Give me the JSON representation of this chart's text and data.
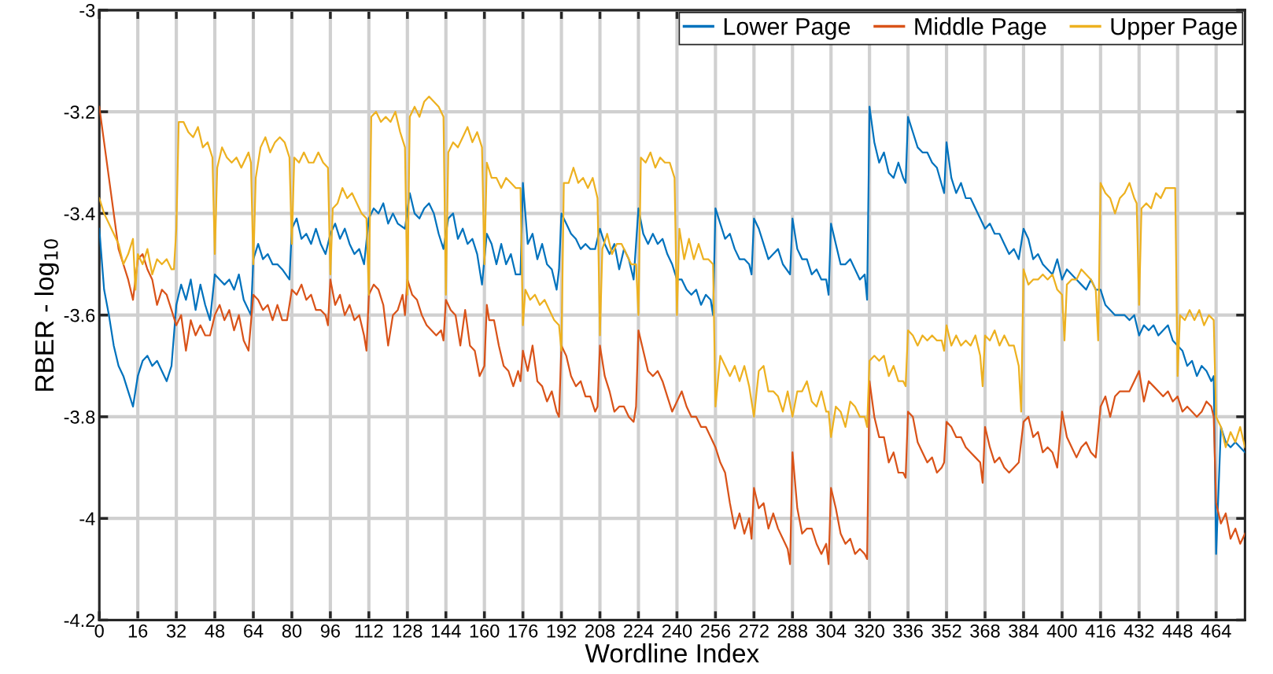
{
  "chart_data": {
    "type": "line",
    "xlabel": "Wordline Index",
    "ylabel": "RBER - log$_{10}$",
    "xlim": [
      0,
      476
    ],
    "xticks": [
      0,
      16,
      32,
      48,
      64,
      80,
      96,
      112,
      128,
      144,
      160,
      176,
      192,
      208,
      224,
      240,
      256,
      272,
      288,
      304,
      320,
      336,
      352,
      368,
      384,
      400,
      416,
      432,
      448,
      464
    ],
    "ylim": [
      -4.2,
      -3
    ],
    "yticks": [
      {
        "value": -4.2,
        "label": "-4.2"
      },
      {
        "value": -4,
        "label": "-4"
      },
      {
        "value": -3.8,
        "label": "-3.8"
      },
      {
        "value": -3.6,
        "label": "-3.6"
      },
      {
        "value": -3.4,
        "label": "-3.4"
      },
      {
        "value": -3.2,
        "label": "-3.2"
      },
      {
        "value": -3,
        "label": "-3"
      }
    ],
    "grid": true,
    "legend": "top right",
    "line_style": "solid",
    "marker": "none",
    "series": [
      {
        "name": "Lower Page",
        "color": "#0072bd",
        "x": [
          0,
          2,
          4,
          6,
          8,
          10,
          12,
          14,
          16,
          18,
          20,
          22,
          24,
          26,
          28,
          30,
          32,
          34,
          36,
          38,
          40,
          42,
          44,
          46,
          48,
          50,
          52,
          54,
          56,
          58,
          60,
          63,
          64,
          66,
          68,
          70,
          72,
          74,
          76,
          79,
          80,
          82,
          84,
          86,
          88,
          90,
          92,
          94,
          96,
          98,
          100,
          102,
          104,
          106,
          108,
          110,
          112,
          114,
          116,
          118,
          120,
          122,
          124,
          127,
          129,
          131,
          133,
          135,
          137,
          139,
          141,
          143,
          145,
          147,
          149,
          151,
          153,
          155,
          157,
          159,
          161,
          163,
          165,
          167,
          169,
          171,
          173,
          175,
          176,
          178,
          180,
          182,
          184,
          186,
          188,
          190,
          191,
          192,
          194,
          196,
          198,
          200,
          202,
          204,
          206,
          208,
          210,
          212,
          214,
          216,
          218,
          220,
          222,
          224,
          226,
          228,
          230,
          232,
          234,
          236,
          238,
          240,
          242,
          244,
          246,
          248,
          250,
          252,
          254,
          255,
          256,
          258,
          260,
          262,
          264,
          266,
          268,
          270,
          271,
          272,
          274,
          276,
          278,
          280,
          282,
          284,
          287,
          288,
          290,
          292,
          294,
          296,
          298,
          300,
          302,
          303,
          304,
          306,
          308,
          310,
          312,
          314,
          316,
          318,
          319,
          320,
          322,
          324,
          326,
          328,
          330,
          332,
          334,
          335,
          336,
          338,
          340,
          342,
          344,
          346,
          348,
          351,
          352,
          354,
          356,
          358,
          360,
          362,
          364,
          366,
          368,
          370,
          372,
          374,
          376,
          378,
          380,
          382,
          384,
          386,
          388,
          390,
          392,
          394,
          396,
          398,
          400,
          402,
          404,
          406,
          408,
          410,
          412,
          414,
          416,
          418,
          420,
          422,
          424,
          426,
          428,
          430,
          432,
          434,
          436,
          438,
          440,
          442,
          444,
          446,
          448,
          450,
          452,
          454,
          456,
          458,
          460,
          462,
          463,
          464,
          466,
          468,
          470,
          472,
          474,
          476
        ],
        "values": [
          -3.43,
          -3.55,
          -3.6,
          -3.66,
          -3.7,
          -3.72,
          -3.75,
          -3.78,
          -3.72,
          -3.69,
          -3.68,
          -3.7,
          -3.69,
          -3.71,
          -3.73,
          -3.7,
          -3.58,
          -3.54,
          -3.57,
          -3.53,
          -3.59,
          -3.54,
          -3.58,
          -3.61,
          -3.52,
          -3.53,
          -3.54,
          -3.53,
          -3.55,
          -3.52,
          -3.57,
          -3.6,
          -3.49,
          -3.46,
          -3.49,
          -3.48,
          -3.5,
          -3.5,
          -3.51,
          -3.53,
          -3.43,
          -3.41,
          -3.45,
          -3.44,
          -3.46,
          -3.43,
          -3.46,
          -3.48,
          -3.44,
          -3.42,
          -3.45,
          -3.43,
          -3.46,
          -3.48,
          -3.47,
          -3.5,
          -3.41,
          -3.39,
          -3.4,
          -3.38,
          -3.42,
          -3.4,
          -3.42,
          -3.43,
          -3.36,
          -3.4,
          -3.41,
          -3.39,
          -3.38,
          -3.4,
          -3.44,
          -3.47,
          -3.41,
          -3.4,
          -3.45,
          -3.43,
          -3.46,
          -3.45,
          -3.48,
          -3.54,
          -3.44,
          -3.46,
          -3.5,
          -3.46,
          -3.5,
          -3.48,
          -3.52,
          -3.52,
          -3.34,
          -3.46,
          -3.44,
          -3.49,
          -3.46,
          -3.5,
          -3.51,
          -3.55,
          -3.51,
          -3.4,
          -3.42,
          -3.44,
          -3.45,
          -3.47,
          -3.46,
          -3.47,
          -3.47,
          -3.43,
          -3.46,
          -3.48,
          -3.46,
          -3.51,
          -3.47,
          -3.49,
          -3.53,
          -3.39,
          -3.44,
          -3.46,
          -3.44,
          -3.46,
          -3.45,
          -3.48,
          -3.5,
          -3.53,
          -3.53,
          -3.55,
          -3.56,
          -3.55,
          -3.58,
          -3.56,
          -3.57,
          -3.6,
          -3.39,
          -3.42,
          -3.45,
          -3.44,
          -3.47,
          -3.49,
          -3.49,
          -3.5,
          -3.52,
          -3.41,
          -3.43,
          -3.46,
          -3.49,
          -3.48,
          -3.47,
          -3.5,
          -3.52,
          -3.41,
          -3.47,
          -3.49,
          -3.49,
          -3.52,
          -3.51,
          -3.53,
          -3.53,
          -3.56,
          -3.42,
          -3.46,
          -3.5,
          -3.5,
          -3.49,
          -3.51,
          -3.53,
          -3.52,
          -3.57,
          -3.19,
          -3.26,
          -3.3,
          -3.28,
          -3.32,
          -3.33,
          -3.3,
          -3.33,
          -3.34,
          -3.21,
          -3.24,
          -3.27,
          -3.28,
          -3.28,
          -3.3,
          -3.31,
          -3.36,
          -3.26,
          -3.33,
          -3.36,
          -3.34,
          -3.37,
          -3.37,
          -3.39,
          -3.41,
          -3.43,
          -3.42,
          -3.44,
          -3.44,
          -3.46,
          -3.48,
          -3.47,
          -3.49,
          -3.43,
          -3.45,
          -3.49,
          -3.48,
          -3.5,
          -3.51,
          -3.52,
          -3.49,
          -3.53,
          -3.51,
          -3.52,
          -3.53,
          -3.54,
          -3.55,
          -3.53,
          -3.55,
          -3.55,
          -3.58,
          -3.59,
          -3.6,
          -3.6,
          -3.6,
          -3.61,
          -3.6,
          -3.64,
          -3.62,
          -3.63,
          -3.62,
          -3.64,
          -3.63,
          -3.62,
          -3.65,
          -3.66,
          -3.67,
          -3.7,
          -3.69,
          -3.72,
          -3.7,
          -3.71,
          -3.73,
          -3.72,
          -4.07,
          -3.82,
          -3.85,
          -3.86,
          -3.85,
          -3.86,
          -3.87
        ]
      },
      {
        "name": "Middle Page",
        "color": "#d95319",
        "x": [
          0,
          2,
          4,
          6,
          8,
          10,
          12,
          14,
          16,
          18,
          20,
          22,
          24,
          26,
          28,
          30,
          32,
          34,
          36,
          38,
          40,
          42,
          44,
          46,
          48,
          50,
          52,
          54,
          56,
          58,
          60,
          62,
          64,
          66,
          68,
          70,
          72,
          74,
          76,
          78,
          80,
          82,
          84,
          86,
          88,
          90,
          92,
          94,
          95,
          96,
          98,
          100,
          102,
          104,
          106,
          108,
          110,
          111,
          112,
          114,
          116,
          118,
          120,
          122,
          124,
          126,
          127,
          128,
          130,
          132,
          134,
          136,
          138,
          140,
          142,
          143,
          144,
          146,
          148,
          150,
          152,
          154,
          156,
          158,
          160,
          161,
          162,
          164,
          166,
          168,
          170,
          172,
          174,
          175,
          176,
          178,
          180,
          182,
          184,
          186,
          188,
          190,
          191,
          192,
          194,
          196,
          198,
          200,
          202,
          204,
          206,
          207,
          208,
          210,
          212,
          214,
          216,
          218,
          220,
          222,
          223,
          224,
          226,
          228,
          230,
          232,
          234,
          236,
          238,
          240,
          242,
          244,
          246,
          248,
          250,
          252,
          254,
          256,
          258,
          260,
          262,
          264,
          266,
          268,
          270,
          271,
          272,
          274,
          276,
          278,
          280,
          282,
          284,
          286,
          287,
          288,
          290,
          292,
          294,
          296,
          298,
          300,
          302,
          303,
          304,
          306,
          308,
          310,
          312,
          314,
          316,
          318,
          319,
          320,
          322,
          324,
          326,
          328,
          330,
          332,
          334,
          335,
          336,
          338,
          340,
          342,
          344,
          346,
          348,
          350,
          351,
          352,
          354,
          356,
          358,
          360,
          362,
          364,
          366,
          367,
          368,
          370,
          372,
          374,
          376,
          378,
          380,
          382,
          384,
          386,
          388,
          390,
          392,
          394,
          396,
          398,
          400,
          402,
          404,
          406,
          408,
          410,
          412,
          414,
          416,
          418,
          420,
          422,
          424,
          426,
          428,
          430,
          432,
          434,
          436,
          438,
          440,
          442,
          444,
          446,
          448,
          450,
          452,
          454,
          456,
          458,
          460,
          462,
          463,
          464,
          466,
          468,
          470,
          472,
          474,
          476
        ],
        "values": [
          -3.19,
          -3.26,
          -3.33,
          -3.4,
          -3.47,
          -3.5,
          -3.53,
          -3.57,
          -3.49,
          -3.48,
          -3.51,
          -3.53,
          -3.58,
          -3.55,
          -3.56,
          -3.59,
          -3.62,
          -3.6,
          -3.67,
          -3.61,
          -3.64,
          -3.62,
          -3.64,
          -3.64,
          -3.6,
          -3.58,
          -3.61,
          -3.59,
          -3.63,
          -3.6,
          -3.65,
          -3.67,
          -3.56,
          -3.57,
          -3.59,
          -3.58,
          -3.61,
          -3.58,
          -3.61,
          -3.61,
          -3.55,
          -3.56,
          -3.54,
          -3.57,
          -3.56,
          -3.59,
          -3.59,
          -3.6,
          -3.62,
          -3.53,
          -3.58,
          -3.56,
          -3.6,
          -3.58,
          -3.61,
          -3.6,
          -3.64,
          -3.67,
          -3.56,
          -3.54,
          -3.55,
          -3.58,
          -3.66,
          -3.6,
          -3.59,
          -3.56,
          -3.6,
          -3.53,
          -3.56,
          -3.57,
          -3.6,
          -3.62,
          -3.63,
          -3.64,
          -3.63,
          -3.65,
          -3.57,
          -3.59,
          -3.6,
          -3.66,
          -3.59,
          -3.66,
          -3.67,
          -3.72,
          -3.7,
          -3.58,
          -3.61,
          -3.61,
          -3.66,
          -3.7,
          -3.71,
          -3.74,
          -3.71,
          -3.73,
          -3.67,
          -3.71,
          -3.66,
          -3.73,
          -3.74,
          -3.77,
          -3.75,
          -3.79,
          -3.8,
          -3.66,
          -3.68,
          -3.72,
          -3.74,
          -3.73,
          -3.76,
          -3.76,
          -3.79,
          -3.78,
          -3.66,
          -3.72,
          -3.75,
          -3.79,
          -3.78,
          -3.78,
          -3.8,
          -3.81,
          -3.78,
          -3.63,
          -3.67,
          -3.71,
          -3.72,
          -3.71,
          -3.73,
          -3.76,
          -3.79,
          -3.77,
          -3.75,
          -3.78,
          -3.8,
          -3.8,
          -3.82,
          -3.82,
          -3.84,
          -3.86,
          -3.89,
          -3.91,
          -3.97,
          -4.02,
          -3.99,
          -4.03,
          -4.0,
          -4.04,
          -3.94,
          -3.98,
          -3.97,
          -4.02,
          -3.99,
          -4.02,
          -4.04,
          -4.06,
          -4.09,
          -3.87,
          -3.98,
          -4.03,
          -4.02,
          -4.02,
          -4.05,
          -4.07,
          -4.05,
          -4.09,
          -3.94,
          -3.98,
          -4.03,
          -4.05,
          -4.04,
          -4.07,
          -4.06,
          -4.07,
          -4.08,
          -3.73,
          -3.8,
          -3.84,
          -3.84,
          -3.89,
          -3.87,
          -3.91,
          -3.91,
          -3.92,
          -3.79,
          -3.8,
          -3.85,
          -3.87,
          -3.89,
          -3.88,
          -3.91,
          -3.9,
          -3.89,
          -3.81,
          -3.82,
          -3.84,
          -3.84,
          -3.86,
          -3.87,
          -3.88,
          -3.89,
          -3.93,
          -3.82,
          -3.86,
          -3.89,
          -3.88,
          -3.9,
          -3.91,
          -3.9,
          -3.89,
          -3.81,
          -3.8,
          -3.84,
          -3.83,
          -3.87,
          -3.86,
          -3.87,
          -3.9,
          -3.79,
          -3.84,
          -3.86,
          -3.88,
          -3.86,
          -3.85,
          -3.87,
          -3.88,
          -3.78,
          -3.76,
          -3.8,
          -3.76,
          -3.75,
          -3.75,
          -3.75,
          -3.73,
          -3.71,
          -3.77,
          -3.73,
          -3.74,
          -3.75,
          -3.76,
          -3.75,
          -3.77,
          -3.76,
          -3.79,
          -3.78,
          -3.79,
          -3.8,
          -3.79,
          -3.77,
          -3.78,
          -3.8,
          -3.97,
          -4.01,
          -3.99,
          -4.04,
          -4.02,
          -4.05,
          -4.03
        ]
      },
      {
        "name": "Upper Page",
        "color": "#edb120",
        "x": [
          0,
          2,
          4,
          6,
          8,
          10,
          12,
          14,
          15,
          16,
          18,
          20,
          22,
          24,
          26,
          28,
          30,
          31,
          32,
          33,
          35,
          37,
          39,
          41,
          43,
          45,
          47,
          48,
          49,
          51,
          53,
          55,
          57,
          59,
          62,
          63,
          64,
          65,
          67,
          69,
          71,
          73,
          75,
          77,
          79,
          80,
          81,
          83,
          85,
          87,
          89,
          91,
          93,
          95,
          96,
          97,
          99,
          101,
          103,
          105,
          107,
          109,
          111,
          112,
          113,
          115,
          117,
          119,
          121,
          123,
          125,
          127,
          128,
          129,
          131,
          133,
          135,
          137,
          139,
          141,
          143,
          144,
          145,
          147,
          149,
          151,
          153,
          155,
          157,
          159,
          160,
          161,
          163,
          165,
          167,
          169,
          171,
          173,
          175,
          176,
          177,
          179,
          181,
          183,
          185,
          187,
          189,
          191,
          192,
          193,
          195,
          197,
          199,
          201,
          203,
          205,
          207,
          208,
          209,
          211,
          213,
          215,
          217,
          219,
          221,
          223,
          224,
          225,
          227,
          229,
          231,
          233,
          235,
          237,
          239,
          240,
          241,
          243,
          245,
          247,
          249,
          251,
          253,
          255,
          256,
          258,
          260,
          262,
          264,
          266,
          268,
          270,
          272,
          274,
          276,
          278,
          280,
          282,
          284,
          286,
          288,
          290,
          292,
          294,
          296,
          298,
          300,
          302,
          303,
          304,
          306,
          308,
          310,
          312,
          314,
          316,
          318,
          319,
          320,
          322,
          324,
          326,
          328,
          330,
          332,
          334,
          335,
          336,
          338,
          340,
          342,
          344,
          346,
          348,
          350,
          351,
          352,
          354,
          356,
          358,
          360,
          362,
          364,
          366,
          367,
          368,
          370,
          372,
          374,
          376,
          378,
          380,
          382,
          383,
          384,
          386,
          388,
          390,
          392,
          394,
          396,
          398,
          400,
          401,
          402,
          404,
          406,
          408,
          410,
          412,
          414,
          415,
          416,
          418,
          420,
          422,
          424,
          426,
          428,
          430,
          431,
          432,
          433,
          435,
          437,
          439,
          441,
          443,
          445,
          447,
          448,
          449,
          451,
          453,
          455,
          457,
          459,
          461,
          463,
          464,
          466,
          468,
          470,
          472,
          474,
          476
        ],
        "values": [
          -3.37,
          -3.4,
          -3.42,
          -3.44,
          -3.46,
          -3.5,
          -3.48,
          -3.45,
          -3.55,
          -3.48,
          -3.5,
          -3.47,
          -3.52,
          -3.49,
          -3.5,
          -3.49,
          -3.51,
          -3.51,
          -3.43,
          -3.22,
          -3.22,
          -3.24,
          -3.25,
          -3.23,
          -3.27,
          -3.26,
          -3.29,
          -3.48,
          -3.31,
          -3.27,
          -3.29,
          -3.3,
          -3.29,
          -3.31,
          -3.28,
          -3.3,
          -3.5,
          -3.33,
          -3.27,
          -3.25,
          -3.28,
          -3.26,
          -3.25,
          -3.26,
          -3.29,
          -3.46,
          -3.29,
          -3.3,
          -3.28,
          -3.3,
          -3.3,
          -3.28,
          -3.3,
          -3.31,
          -3.52,
          -3.39,
          -3.38,
          -3.35,
          -3.37,
          -3.36,
          -3.38,
          -3.4,
          -3.41,
          -3.56,
          -3.21,
          -3.2,
          -3.22,
          -3.21,
          -3.22,
          -3.2,
          -3.24,
          -3.27,
          -3.56,
          -3.21,
          -3.19,
          -3.21,
          -3.18,
          -3.17,
          -3.18,
          -3.19,
          -3.21,
          -3.56,
          -3.28,
          -3.26,
          -3.27,
          -3.25,
          -3.23,
          -3.26,
          -3.24,
          -3.27,
          -3.5,
          -3.3,
          -3.33,
          -3.33,
          -3.35,
          -3.33,
          -3.34,
          -3.35,
          -3.35,
          -3.62,
          -3.55,
          -3.57,
          -3.56,
          -3.58,
          -3.57,
          -3.59,
          -3.61,
          -3.62,
          -3.67,
          -3.34,
          -3.34,
          -3.31,
          -3.34,
          -3.33,
          -3.35,
          -3.33,
          -3.37,
          -3.64,
          -3.47,
          -3.44,
          -3.48,
          -3.46,
          -3.46,
          -3.48,
          -3.5,
          -3.5,
          -3.6,
          -3.29,
          -3.3,
          -3.28,
          -3.31,
          -3.29,
          -3.3,
          -3.3,
          -3.33,
          -3.6,
          -3.43,
          -3.49,
          -3.45,
          -3.49,
          -3.46,
          -3.49,
          -3.49,
          -3.5,
          -3.78,
          -3.68,
          -3.7,
          -3.72,
          -3.7,
          -3.73,
          -3.7,
          -3.74,
          -3.8,
          -3.71,
          -3.7,
          -3.75,
          -3.75,
          -3.76,
          -3.79,
          -3.75,
          -3.8,
          -3.75,
          -3.75,
          -3.73,
          -3.77,
          -3.78,
          -3.75,
          -3.79,
          -3.79,
          -3.84,
          -3.78,
          -3.79,
          -3.82,
          -3.77,
          -3.78,
          -3.8,
          -3.8,
          -3.82,
          -3.69,
          -3.68,
          -3.69,
          -3.68,
          -3.72,
          -3.7,
          -3.73,
          -3.73,
          -3.74,
          -3.63,
          -3.64,
          -3.66,
          -3.64,
          -3.65,
          -3.64,
          -3.65,
          -3.65,
          -3.67,
          -3.62,
          -3.66,
          -3.64,
          -3.66,
          -3.65,
          -3.66,
          -3.64,
          -3.68,
          -3.74,
          -3.64,
          -3.65,
          -3.63,
          -3.66,
          -3.64,
          -3.66,
          -3.66,
          -3.7,
          -3.79,
          -3.51,
          -3.54,
          -3.53,
          -3.53,
          -3.52,
          -3.53,
          -3.52,
          -3.55,
          -3.56,
          -3.65,
          -3.54,
          -3.53,
          -3.53,
          -3.51,
          -3.52,
          -3.53,
          -3.55,
          -3.65,
          -3.34,
          -3.36,
          -3.37,
          -3.4,
          -3.37,
          -3.36,
          -3.34,
          -3.37,
          -3.38,
          -3.58,
          -3.39,
          -3.38,
          -3.39,
          -3.36,
          -3.37,
          -3.35,
          -3.35,
          -3.35,
          -3.72,
          -3.6,
          -3.61,
          -3.59,
          -3.61,
          -3.59,
          -3.62,
          -3.6,
          -3.61,
          -3.8,
          -3.82,
          -3.86,
          -3.83,
          -3.85,
          -3.82,
          -3.86
        ]
      }
    ]
  }
}
